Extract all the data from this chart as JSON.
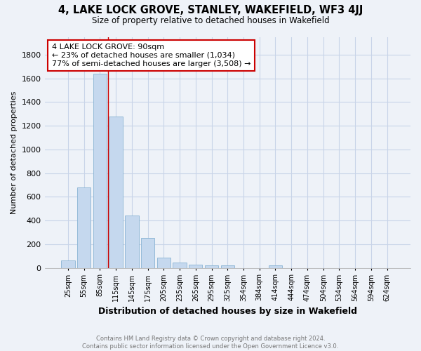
{
  "title": "4, LAKE LOCK GROVE, STANLEY, WAKEFIELD, WF3 4JJ",
  "subtitle": "Size of property relative to detached houses in Wakefield",
  "xlabel": "Distribution of detached houses by size in Wakefield",
  "ylabel": "Number of detached properties",
  "footnote": "Contains HM Land Registry data © Crown copyright and database right 2024.\nContains public sector information licensed under the Open Government Licence v3.0.",
  "categories": [
    "25sqm",
    "55sqm",
    "85sqm",
    "115sqm",
    "145sqm",
    "175sqm",
    "205sqm",
    "235sqm",
    "265sqm",
    "295sqm",
    "325sqm",
    "354sqm",
    "384sqm",
    "414sqm",
    "444sqm",
    "474sqm",
    "504sqm",
    "534sqm",
    "564sqm",
    "594sqm",
    "624sqm"
  ],
  "values": [
    65,
    680,
    1640,
    1280,
    440,
    250,
    85,
    45,
    30,
    20,
    20,
    0,
    0,
    20,
    0,
    0,
    0,
    0,
    0,
    0,
    0
  ],
  "bar_color": "#c5d8ee",
  "bar_edge_color": "#8ab4d4",
  "grid_color": "#c8d4e8",
  "background_color": "#eef2f8",
  "red_line_x": 2.5,
  "annotation_text": "4 LAKE LOCK GROVE: 90sqm\n← 23% of detached houses are smaller (1,034)\n77% of semi-detached houses are larger (3,508) →",
  "annotation_box_color": "#ffffff",
  "annotation_box_edge": "#cc0000",
  "ylim": [
    0,
    1950
  ],
  "yticks": [
    0,
    200,
    400,
    600,
    800,
    1000,
    1200,
    1400,
    1600,
    1800
  ]
}
